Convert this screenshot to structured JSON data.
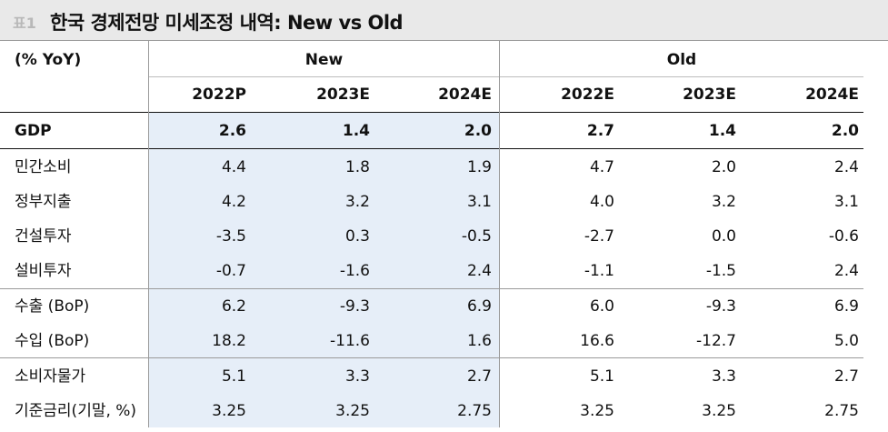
{
  "title": {
    "tag": "표1",
    "text": "한국 경제전망 미세조정 내역: New vs Old"
  },
  "header": {
    "unit": "(% YoY)",
    "groups": [
      "New",
      "Old"
    ],
    "years": [
      "2022P",
      "2023E",
      "2024E",
      "2022E",
      "2023E",
      "2024E"
    ]
  },
  "rows": [
    {
      "label": "GDP",
      "values": [
        "2.6",
        "1.4",
        "2.0",
        "2.7",
        "1.4",
        "2.0"
      ]
    },
    {
      "label": "민간소비",
      "values": [
        "4.4",
        "1.8",
        "1.9",
        "4.7",
        "2.0",
        "2.4"
      ]
    },
    {
      "label": "정부지출",
      "values": [
        "4.2",
        "3.2",
        "3.1",
        "4.0",
        "3.2",
        "3.1"
      ]
    },
    {
      "label": "건설투자",
      "values": [
        "-3.5",
        "0.3",
        "-0.5",
        "-2.7",
        "0.0",
        "-0.6"
      ]
    },
    {
      "label": "설비투자",
      "values": [
        "-0.7",
        "-1.6",
        "2.4",
        "-1.1",
        "-1.5",
        "2.4"
      ]
    },
    {
      "label": "수출 (BoP)",
      "values": [
        "6.2",
        "-9.3",
        "6.9",
        "6.0",
        "-9.3",
        "6.9"
      ]
    },
    {
      "label": "수입 (BoP)",
      "values": [
        "18.2",
        "-11.6",
        "1.6",
        "16.6",
        "-12.7",
        "5.0"
      ]
    },
    {
      "label": "소비자물가",
      "values": [
        "5.1",
        "3.3",
        "2.7",
        "5.1",
        "3.3",
        "2.7"
      ]
    },
    {
      "label": "기준금리(기말, %)",
      "values": [
        "3.25",
        "3.25",
        "2.75",
        "3.25",
        "3.25",
        "2.75"
      ]
    }
  ]
}
